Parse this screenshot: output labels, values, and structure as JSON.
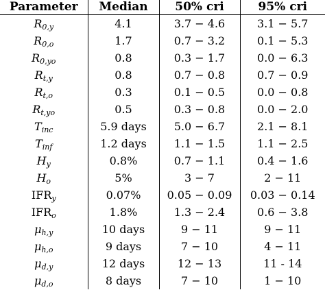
{
  "table": {
    "headers": [
      "Parameter",
      "Median",
      "50% cri",
      "95% cri"
    ],
    "rows": [
      {
        "param_main": "R",
        "param_sub": "0,y",
        "param_roman": false,
        "median": "4.1",
        "cri50": "3.7 − 4.6",
        "cri95": "3.1 − 5.7"
      },
      {
        "param_main": "R",
        "param_sub": "0,o",
        "param_roman": false,
        "median": "1.7",
        "cri50": "0.7 − 3.2",
        "cri95": "0.1 − 5.3"
      },
      {
        "param_main": "R",
        "param_sub": "0,yo",
        "param_roman": false,
        "median": "0.8",
        "cri50": "0.3 − 1.7",
        "cri95": "0.0 − 6.3"
      },
      {
        "param_main": "R",
        "param_sub": "t,y",
        "param_roman": false,
        "median": "0.8",
        "cri50": "0.7 − 0.8",
        "cri95": "0.7 − 0.9"
      },
      {
        "param_main": "R",
        "param_sub": "t,o",
        "param_roman": false,
        "median": "0.3",
        "cri50": "0.1 − 0.5",
        "cri95": "0.0 − 0.8"
      },
      {
        "param_main": "R",
        "param_sub": "t,yo",
        "param_roman": false,
        "median": "0.5",
        "cri50": "0.3 − 0.8",
        "cri95": "0.0 − 2.0"
      },
      {
        "param_main": "T",
        "param_sub": "inc",
        "param_roman": false,
        "median": "5.9 days",
        "cri50": "5.0 − 6.7",
        "cri95": "2.1 − 8.1"
      },
      {
        "param_main": "T",
        "param_sub": "inf",
        "param_roman": false,
        "median": "1.2 days",
        "cri50": "1.1 − 1.5",
        "cri95": "1.1 − 2.5"
      },
      {
        "param_main": "H",
        "param_sub": "y",
        "param_roman": false,
        "median": "0.8%",
        "cri50": "0.7 − 1.1",
        "cri95": "0.4 − 1.6"
      },
      {
        "param_main": "H",
        "param_sub": "o",
        "param_roman": false,
        "median": "5%",
        "cri50": "3 − 7",
        "cri95": "2 − 11"
      },
      {
        "param_main": "IFR",
        "param_sub": "y",
        "param_roman": true,
        "median": "0.07%",
        "cri50": "0.05 − 0.09",
        "cri95": "0.03 − 0.14"
      },
      {
        "param_main": "IFR",
        "param_sub": "o",
        "param_roman": true,
        "median": "1.8%",
        "cri50": "1.3 − 2.4",
        "cri95": "0.6 − 3.8"
      },
      {
        "param_main": "μ",
        "param_sub": "h,y",
        "param_roman": false,
        "median": "10 days",
        "cri50": "9 − 11",
        "cri95": "9 − 11"
      },
      {
        "param_main": "μ",
        "param_sub": "h,o",
        "param_roman": false,
        "median": "9 days",
        "cri50": "7 − 10",
        "cri95": "4 − 11"
      },
      {
        "param_main": "μ",
        "param_sub": "d,y",
        "param_roman": false,
        "median": "12 days",
        "cri50": "12 − 13",
        "cri95": "11 - 14"
      },
      {
        "param_main": "μ",
        "param_sub": "d,o",
        "param_roman": false,
        "median": "8 days",
        "cri50": "7 − 10",
        "cri95": "1 − 10"
      }
    ]
  }
}
